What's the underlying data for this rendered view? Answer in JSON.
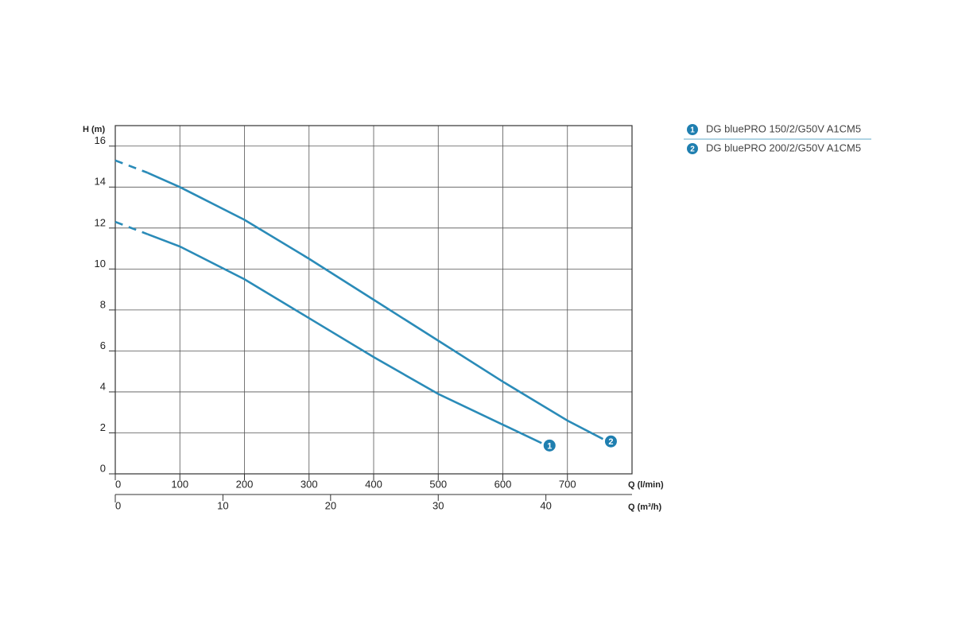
{
  "chart_data": {
    "type": "line",
    "ylabel": "H (m)",
    "xlabel": "Q (l/min)",
    "x2label": "Q (m³/h)",
    "xlim": [
      0,
      800
    ],
    "xticks": [
      0,
      100,
      200,
      300,
      400,
      500,
      600,
      700
    ],
    "x2lim": [
      0,
      48
    ],
    "x2ticks": [
      0,
      10,
      20,
      30,
      40
    ],
    "ylim": [
      0,
      17
    ],
    "yticks": [
      0,
      2,
      4,
      6,
      8,
      10,
      12,
      14,
      16
    ],
    "grid": true,
    "legend": "upper right",
    "series": [
      {
        "name": "DG bluePRO 150/2/G50V A1CM5",
        "marker_label": "1",
        "color": "#2a8bb8",
        "x": [
          0,
          50,
          100,
          200,
          300,
          400,
          500,
          600,
          660
        ],
        "values": [
          12.3,
          11.7,
          11.1,
          9.5,
          7.6,
          5.7,
          3.9,
          2.4,
          1.5
        ]
      },
      {
        "name": "DG bluePRO 200/2/G50V A1CM5",
        "marker_label": "2",
        "color": "#2a8bb8",
        "x": [
          0,
          50,
          100,
          200,
          300,
          400,
          500,
          600,
          700,
          755
        ],
        "values": [
          15.3,
          14.7,
          14.0,
          12.4,
          10.5,
          8.5,
          6.5,
          4.5,
          2.6,
          1.7
        ]
      }
    ]
  }
}
